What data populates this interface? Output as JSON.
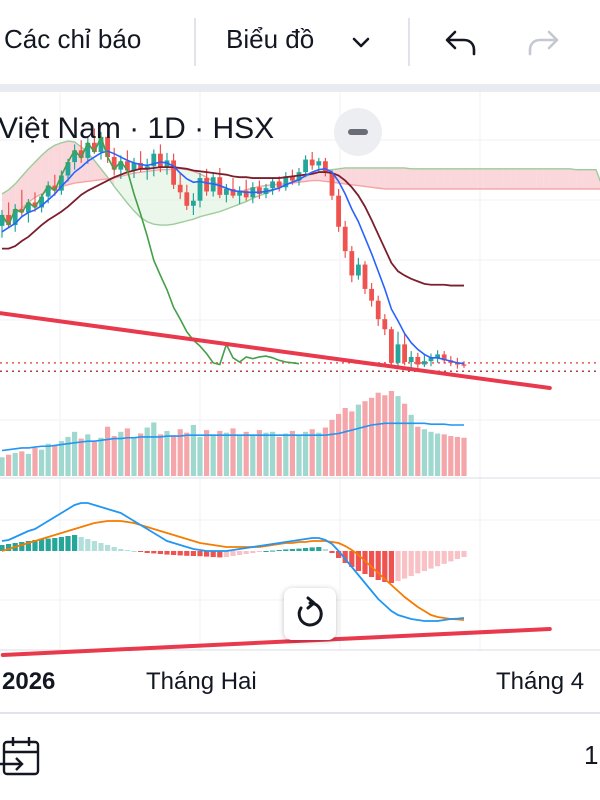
{
  "toolbar": {
    "indicators_label": "Các chỉ báo",
    "chart_type_label": "Biểu đồ",
    "chevron_icon": "chevron-down-icon",
    "undo_icon": "undo-icon",
    "redo_icon": "redo-icon"
  },
  "legend": {
    "title": "Việt Nam · 1D · HSX"
  },
  "time_axis": {
    "labels": [
      "2026",
      "Tháng Hai",
      "Tháng 4"
    ]
  },
  "bottom_bar": {
    "page_indicator": "1",
    "date_range_icon": "calendar-arrow-icon"
  },
  "colors": {
    "up": "#26a69a",
    "down": "#ef5350",
    "cloud_bull": "#f8c9cf",
    "cloud_bear": "#c9e8c9",
    "tenkan": "#2962ff",
    "kijun": "#7b1f2e",
    "chikou": "#43a047",
    "trendline": "#e8394d",
    "macd": "#2196f3",
    "signal": "#f57c00"
  },
  "chart_data": [
    {
      "type": "candlestick",
      "panel": "price",
      "title": "Việt Nam · 1D · HSX",
      "candles": [
        [
          58.2,
          60.1,
          56.8,
          59.5
        ],
        [
          59.5,
          61.0,
          57.9,
          58.3
        ],
        [
          58.3,
          60.8,
          57.5,
          60.2
        ],
        [
          60.2,
          62.5,
          59.4,
          59.8
        ],
        [
          59.8,
          61.4,
          58.6,
          61.0
        ],
        [
          61.0,
          62.2,
          59.9,
          60.4
        ],
        [
          60.4,
          62.0,
          59.8,
          61.7
        ],
        [
          61.7,
          63.5,
          60.9,
          63.0
        ],
        [
          63.0,
          64.3,
          61.8,
          62.4
        ],
        [
          62.4,
          64.8,
          61.9,
          64.2
        ],
        [
          64.2,
          66.2,
          63.5,
          65.8
        ],
        [
          65.8,
          67.9,
          64.9,
          67.2
        ],
        [
          67.2,
          68.4,
          65.7,
          66.3
        ],
        [
          66.3,
          68.9,
          65.6,
          68.1
        ],
        [
          68.1,
          69.8,
          66.8,
          67.0
        ],
        [
          67.0,
          69.4,
          66.1,
          68.8
        ],
        [
          68.8,
          69.6,
          65.7,
          66.4
        ],
        [
          66.4,
          67.5,
          64.2,
          64.9
        ],
        [
          64.9,
          66.6,
          63.8,
          65.9
        ],
        [
          65.9,
          67.2,
          64.5,
          64.8
        ],
        [
          64.8,
          66.3,
          63.9,
          65.7
        ],
        [
          65.7,
          67.1,
          64.6,
          64.9
        ],
        [
          64.9,
          66.2,
          63.7,
          65.3
        ],
        [
          65.3,
          67.3,
          64.1,
          66.8
        ],
        [
          66.8,
          67.9,
          64.6,
          65.2
        ],
        [
          65.2,
          66.9,
          64.3,
          66.0
        ],
        [
          66.0,
          66.8,
          62.6,
          63.1
        ],
        [
          63.1,
          64.5,
          61.4,
          62.2
        ],
        [
          62.2,
          63.1,
          60.1,
          60.6
        ],
        [
          60.6,
          62.1,
          59.5,
          61.2
        ],
        [
          61.2,
          64.5,
          60.4,
          63.9
        ],
        [
          63.9,
          65.0,
          61.8,
          62.3
        ],
        [
          62.3,
          64.6,
          61.7,
          64.0
        ],
        [
          64.0,
          65.1,
          61.5,
          61.9
        ],
        [
          61.9,
          63.2,
          61.0,
          62.6
        ],
        [
          62.6,
          63.9,
          61.5,
          61.8
        ],
        [
          61.8,
          62.9,
          60.8,
          62.4
        ],
        [
          62.4,
          63.7,
          61.2,
          61.6
        ],
        [
          61.6,
          63.4,
          60.9,
          62.8
        ],
        [
          62.8,
          63.6,
          61.4,
          62.0
        ],
        [
          62.0,
          63.2,
          61.5,
          62.7
        ],
        [
          62.7,
          64.0,
          61.9,
          63.5
        ],
        [
          63.5,
          64.1,
          62.3,
          62.8
        ],
        [
          62.8,
          64.6,
          62.4,
          64.1
        ],
        [
          64.1,
          64.9,
          63.1,
          63.6
        ],
        [
          63.6,
          65.1,
          63.0,
          64.6
        ],
        [
          64.6,
          66.6,
          64.0,
          66.1
        ],
        [
          66.1,
          67.0,
          64.9,
          65.4
        ],
        [
          65.4,
          66.3,
          64.6,
          65.9
        ],
        [
          65.9,
          66.3,
          64.1,
          64.5
        ],
        [
          64.5,
          64.8,
          61.3,
          61.8
        ],
        [
          61.8,
          62.6,
          57.5,
          58.1
        ],
        [
          58.1,
          58.8,
          54.4,
          55.2
        ],
        [
          55.2,
          55.8,
          51.5,
          52.3
        ],
        [
          52.3,
          54.4,
          51.8,
          53.6
        ],
        [
          53.6,
          54.0,
          50.1,
          50.7
        ],
        [
          50.7,
          51.4,
          48.6,
          49.3
        ],
        [
          49.3,
          49.9,
          46.3,
          47.1
        ],
        [
          47.1,
          47.7,
          45.2,
          45.9
        ],
        [
          45.9,
          46.2,
          41.5,
          41.9
        ],
        [
          41.9,
          45.6,
          41.5,
          44.1
        ],
        [
          44.1,
          45.4,
          41.6,
          42.0
        ],
        [
          42.0,
          43.3,
          41.2,
          42.6
        ],
        [
          42.6,
          43.1,
          41.3,
          41.7
        ],
        [
          41.7,
          42.8,
          41.4,
          42.1
        ],
        [
          42.1,
          43.0,
          41.5,
          42.5
        ],
        [
          42.5,
          43.4,
          41.9,
          42.9
        ],
        [
          42.9,
          43.3,
          41.8,
          42.2
        ],
        [
          42.2,
          42.7,
          41.5,
          41.9
        ],
        [
          41.9,
          42.5,
          41.2,
          41.7
        ],
        [
          41.7,
          42.1,
          41.3,
          41.6
        ]
      ],
      "ichimoku": {
        "tenkan": [
          57.5,
          58.0,
          58.5,
          59.3,
          59.8,
          60.1,
          60.6,
          61.3,
          62.0,
          62.9,
          63.7,
          64.6,
          65.2,
          65.9,
          66.4,
          66.9,
          67.1,
          66.8,
          66.4,
          66.0,
          65.7,
          65.5,
          65.4,
          65.6,
          65.8,
          65.7,
          65.3,
          64.5,
          63.8,
          63.4,
          63.5,
          63.3,
          63.2,
          63.0,
          62.7,
          62.4,
          62.3,
          62.2,
          62.2,
          62.2,
          62.3,
          62.5,
          62.7,
          63.1,
          63.4,
          63.7,
          64.2,
          64.6,
          64.9,
          65.0,
          64.6,
          63.5,
          62.0,
          60.2,
          58.7,
          56.8,
          54.9,
          52.8,
          50.7,
          48.3,
          46.9,
          45.4,
          44.3,
          43.5,
          42.9,
          42.5,
          42.5,
          42.3,
          42.1,
          41.9,
          41.8
        ],
        "kijun": [
          55.5,
          55.5,
          55.8,
          56.4,
          56.9,
          57.6,
          58.3,
          58.9,
          59.4,
          59.9,
          60.5,
          61.2,
          61.9,
          62.4,
          62.8,
          63.2,
          63.6,
          64.0,
          64.3,
          64.6,
          64.8,
          65.0,
          65.0,
          65.1,
          65.2,
          65.2,
          65.2,
          65.1,
          65.0,
          64.8,
          64.7,
          64.6,
          64.5,
          64.4,
          64.3,
          64.1,
          64.0,
          64.0,
          63.9,
          63.9,
          63.9,
          63.9,
          63.9,
          64.0,
          64.1,
          64.2,
          64.3,
          64.4,
          64.6,
          64.6,
          64.5,
          64.2,
          63.6,
          62.8,
          61.8,
          60.5,
          58.9,
          57.2,
          55.5,
          53.8,
          52.8,
          52.3,
          51.9,
          51.6,
          51.3,
          51.2,
          51.2,
          51.2,
          51.1,
          51.1,
          51.1
        ],
        "span_a": [
          58.5,
          59.0,
          59.6,
          60.3,
          61.0,
          61.6,
          62.0,
          62.4,
          62.7,
          62.9,
          63.1,
          63.3,
          63.4,
          63.5,
          63.6,
          63.7,
          63.8,
          63.9,
          64.1,
          64.3,
          64.5,
          64.6,
          64.7,
          64.8,
          64.9,
          64.9,
          65.0,
          65.0,
          64.9,
          64.7,
          64.4,
          64.0,
          63.5,
          63.0,
          62.6,
          62.4,
          62.3,
          62.5,
          62.7,
          62.9,
          63.0,
          63.1,
          63.2,
          63.2,
          63.3,
          63.4,
          63.5,
          63.6,
          63.6,
          63.5,
          63.4,
          63.3,
          63.2,
          63.1,
          63.0,
          62.9,
          62.8,
          62.7,
          62.6,
          62.6,
          62.6,
          62.6,
          62.6,
          62.6,
          62.6,
          62.6,
          62.6,
          62.6,
          62.6,
          62.6,
          62.6,
          62.6,
          62.6,
          62.6,
          62.6,
          62.6,
          62.6,
          62.6,
          62.6,
          62.6,
          62.6,
          62.6,
          62.6,
          62.6,
          62.6,
          62.6,
          62.6,
          62.6,
          62.6,
          62.6,
          62.6,
          62.6,
          62.6,
          62.6,
          62.6,
          62.6
        ],
        "span_b": [
          62.0,
          62.5,
          63.2,
          64.1,
          65.0,
          65.8,
          66.6,
          67.3,
          67.8,
          68.1,
          68.3,
          68.2,
          67.6,
          66.9,
          66.0,
          65.0,
          64.0,
          62.9,
          61.9,
          60.9,
          60.0,
          59.2,
          58.7,
          58.4,
          58.3,
          58.3,
          58.4,
          58.6,
          58.8,
          59.0,
          59.3,
          59.5,
          59.7,
          59.9,
          60.2,
          60.5,
          60.8,
          61.1,
          61.5,
          61.8,
          62.1,
          62.4,
          62.8,
          63.1,
          63.5,
          63.8,
          64.1,
          64.4,
          64.6,
          64.8,
          64.9,
          65.0,
          65.1,
          65.1,
          65.1,
          65.1,
          65.1,
          65.1,
          65.1,
          65.1,
          65.1,
          65.1,
          65.0,
          65.0,
          65.0,
          65.0,
          65.0,
          65.0,
          65.0,
          65.0,
          65.0,
          65.0,
          65.0,
          65.0,
          65.0,
          65.0,
          65.0,
          65.0,
          65.0,
          65.0,
          65.0,
          65.0,
          65.0,
          65.0,
          65.0,
          65.0,
          65.0,
          64.9,
          64.9,
          64.9,
          64.9,
          62.8,
          62.6,
          62.6,
          62.6,
          62.6
        ],
        "chikou": [
          59.5,
          58.3,
          60.2,
          59.8,
          61.0,
          60.4,
          61.7,
          63.0,
          62.4,
          64.2,
          65.8,
          67.2,
          66.3,
          68.1,
          67.0,
          68.8,
          66.4,
          64.9,
          65.9,
          64.8,
          62.0,
          59.6,
          57.0,
          54.1,
          52.3,
          50.6,
          48.5,
          47.1,
          45.6,
          44.6,
          43.9,
          43.0,
          41.9,
          41.7,
          44.1,
          42.5,
          42.0,
          42.6,
          42.4,
          42.6,
          42.7,
          42.5,
          42.2,
          42.0,
          41.9,
          41.8
        ]
      },
      "price_lines": [
        41.9,
        40.9
      ],
      "trendline": [
        [
          -2,
          48.0
        ],
        [
          83,
          38.9
        ]
      ],
      "x_labels": [
        "2026",
        "Tháng Hai",
        "Tháng 4"
      ]
    },
    {
      "type": "bar",
      "panel": "volume",
      "values": [
        22,
        25,
        27,
        29,
        26,
        33,
        31,
        38,
        36,
        41,
        46,
        52,
        44,
        49,
        40,
        45,
        58,
        47,
        52,
        56,
        45,
        50,
        57,
        63,
        49,
        53,
        48,
        55,
        51,
        60,
        46,
        54,
        49,
        53,
        51,
        56,
        47,
        52,
        49,
        54,
        51,
        52,
        46,
        50,
        53,
        48,
        52,
        55,
        51,
        57,
        66,
        73,
        80,
        76,
        84,
        88,
        92,
        98,
        95,
        100,
        94,
        85,
        72,
        58,
        55,
        52,
        50,
        49,
        47,
        46,
        45
      ],
      "ma": [
        30,
        31,
        32,
        33,
        33,
        34,
        35,
        35,
        36,
        37,
        38,
        39,
        40,
        41,
        41,
        42,
        43,
        44,
        44,
        45,
        45,
        46,
        46,
        46,
        46,
        47,
        47,
        47,
        48,
        48,
        48,
        48,
        48,
        48,
        48,
        48,
        48,
        48,
        48,
        48,
        48,
        48,
        48,
        48,
        48,
        48,
        48,
        48,
        48,
        48,
        49,
        50,
        52,
        54,
        56,
        58,
        60,
        61,
        62,
        62,
        62,
        62,
        62,
        62,
        62,
        61,
        61,
        61,
        60,
        60,
        60
      ]
    },
    {
      "type": "bar",
      "panel": "macd",
      "histogram": [
        0.3,
        0.35,
        0.4,
        0.45,
        0.5,
        0.55,
        0.6,
        0.62,
        0.65,
        0.7,
        0.75,
        0.8,
        0.7,
        0.6,
        0.5,
        0.4,
        0.3,
        0.2,
        0.1,
        0.05,
        0.0,
        -0.05,
        -0.1,
        -0.12,
        -0.15,
        -0.18,
        -0.2,
        -0.22,
        -0.24,
        -0.25,
        -0.26,
        -0.28,
        -0.3,
        -0.32,
        -0.3,
        -0.25,
        -0.2,
        -0.15,
        -0.1,
        -0.05,
        0.0,
        0.02,
        0.05,
        0.08,
        0.1,
        0.12,
        0.15,
        0.18,
        0.2,
        0.1,
        -0.1,
        -0.35,
        -0.6,
        -0.8,
        -1.0,
        -1.15,
        -1.3,
        -1.45,
        -1.55,
        -1.6,
        -1.5,
        -1.38,
        -1.25,
        -1.12,
        -1.0,
        -0.88,
        -0.76,
        -0.64,
        -0.52,
        -0.4,
        -0.3
      ],
      "macd_line": [
        0.5,
        0.55,
        0.7,
        0.85,
        1.0,
        1.1,
        1.3,
        1.5,
        1.7,
        1.9,
        2.1,
        2.3,
        2.4,
        2.4,
        2.3,
        2.2,
        2.1,
        2.0,
        1.9,
        1.7,
        1.5,
        1.3,
        1.1,
        0.9,
        0.7,
        0.5,
        0.4,
        0.3,
        0.2,
        0.1,
        0.05,
        0.0,
        0.0,
        0.0,
        0.0,
        0.05,
        0.1,
        0.15,
        0.2,
        0.25,
        0.3,
        0.35,
        0.4,
        0.45,
        0.5,
        0.55,
        0.6,
        0.65,
        0.65,
        0.55,
        0.35,
        0.0,
        -0.4,
        -0.8,
        -1.2,
        -1.6,
        -2.0,
        -2.4,
        -2.7,
        -3.0,
        -3.2,
        -3.3,
        -3.4,
        -3.45,
        -3.5,
        -3.5,
        -3.5,
        -3.45,
        -3.4,
        -3.38,
        -3.35
      ],
      "signal_line": [
        0.0,
        0.1,
        0.2,
        0.3,
        0.4,
        0.5,
        0.6,
        0.7,
        0.8,
        0.9,
        1.0,
        1.1,
        1.2,
        1.3,
        1.4,
        1.45,
        1.5,
        1.5,
        1.5,
        1.45,
        1.4,
        1.3,
        1.2,
        1.1,
        1.0,
        0.9,
        0.8,
        0.7,
        0.6,
        0.5,
        0.4,
        0.35,
        0.3,
        0.25,
        0.2,
        0.2,
        0.2,
        0.2,
        0.2,
        0.2,
        0.25,
        0.3,
        0.35,
        0.4,
        0.4,
        0.45,
        0.45,
        0.5,
        0.5,
        0.5,
        0.45,
        0.4,
        0.25,
        0.05,
        -0.2,
        -0.5,
        -0.8,
        -1.1,
        -1.4,
        -1.7,
        -2.0,
        -2.3,
        -2.55,
        -2.8,
        -3.0,
        -3.2,
        -3.3,
        -3.35,
        -3.4,
        -3.42,
        -3.45
      ],
      "trendline": [
        [
          -2,
          -5.2
        ],
        [
          83,
          -3.9
        ]
      ]
    }
  ]
}
